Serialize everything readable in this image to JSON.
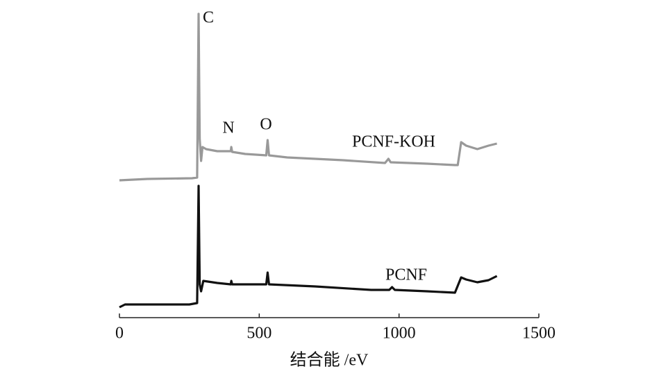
{
  "chart_data": {
    "type": "line",
    "xlabel": "结合能 /eV",
    "xlim": [
      0,
      1500
    ],
    "xticks": [
      0,
      500,
      1000,
      1500
    ],
    "ylim": [
      0,
      440
    ],
    "annotations": [
      "C",
      "N",
      "O"
    ],
    "series": [
      {
        "name": "PCNF-KOH",
        "color": "#999999",
        "x": [
          0,
          100,
          260,
          278,
          283,
          287,
          292,
          297,
          310,
          350,
          398,
          400,
          403,
          450,
          525,
          530,
          535,
          600,
          800,
          950,
          962,
          970,
          1100,
          1200,
          1210,
          1222,
          1240,
          1280,
          1320,
          1350
        ],
        "values": [
          198,
          200,
          201,
          202,
          438,
          258,
          226,
          246,
          243,
          240,
          240,
          246,
          239,
          236,
          234,
          256,
          234,
          231,
          227,
          223,
          229,
          224,
          222,
          220,
          220,
          253,
          248,
          243,
          248,
          251
        ]
      },
      {
        "name": "PCNF",
        "color": "#111111",
        "x": [
          0,
          20,
          100,
          250,
          278,
          283,
          287,
          292,
          300,
          350,
          398,
          400,
          403,
          450,
          525,
          530,
          535,
          700,
          900,
          965,
          975,
          985,
          1100,
          1200,
          1222,
          1240,
          1280,
          1320,
          1350
        ],
        "values": [
          15,
          19,
          19,
          19,
          21,
          190,
          48,
          38,
          53,
          50,
          48,
          53,
          48,
          48,
          48,
          65,
          48,
          45,
          40,
          40,
          44,
          40,
          38,
          36,
          58,
          55,
          51,
          54,
          60
        ]
      }
    ]
  }
}
